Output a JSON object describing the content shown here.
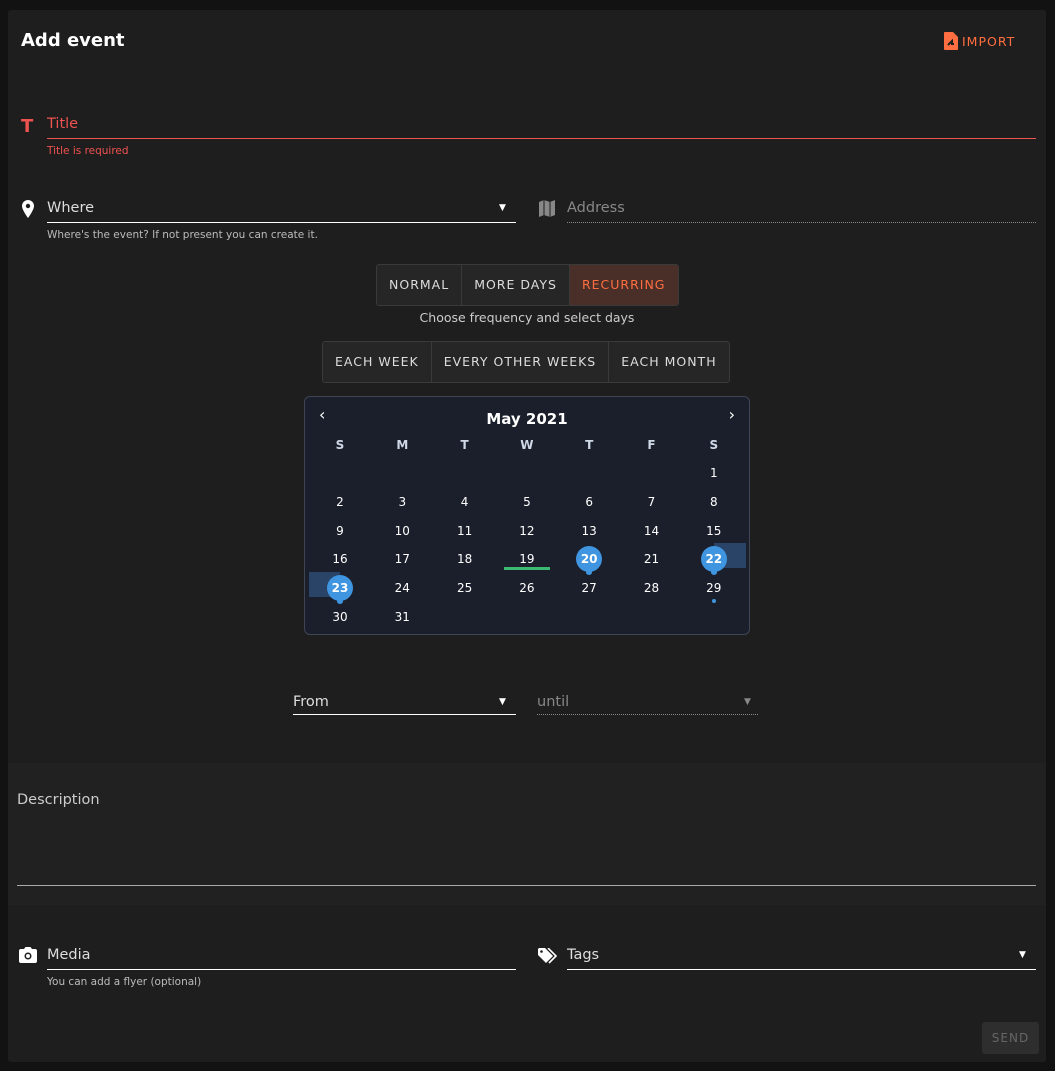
{
  "header": {
    "title": "Add event",
    "import_label": "IMPORT"
  },
  "colors": {
    "accent": "#ff6e40",
    "error": "#ef5350",
    "selected": "#3f95e0",
    "today": "#3cba72"
  },
  "title_field": {
    "label": "Title",
    "error": "Title is required"
  },
  "where_field": {
    "label": "Where",
    "hint": "Where's the event? If not present you can create it."
  },
  "address_field": {
    "placeholder": "Address"
  },
  "mode_buttons": [
    "NORMAL",
    "MORE DAYS",
    "RECURRING"
  ],
  "mode_selected": "RECURRING",
  "frequency_hint": "Choose frequency and select days",
  "frequency_buttons": [
    "EACH WEEK",
    "EVERY OTHER WEEKS",
    "EACH MONTH"
  ],
  "calendar": {
    "month": "May 2021",
    "weekdays": [
      "S",
      "M",
      "T",
      "W",
      "T",
      "F",
      "S"
    ],
    "weeks": [
      [
        "",
        "",
        "",
        "",
        "",
        "",
        "1"
      ],
      [
        "2",
        "3",
        "4",
        "5",
        "6",
        "7",
        "8"
      ],
      [
        "9",
        "10",
        "11",
        "12",
        "13",
        "14",
        "15"
      ],
      [
        "16",
        "17",
        "18",
        "19",
        "20",
        "21",
        "22"
      ],
      [
        "23",
        "24",
        "25",
        "26",
        "27",
        "28",
        "29"
      ],
      [
        "30",
        "31",
        "",
        "",
        "",
        "",
        ""
      ]
    ],
    "today": "19",
    "selected": [
      "20",
      "22",
      "23"
    ],
    "event_dot": [
      "29"
    ]
  },
  "from_field": {
    "label": "From"
  },
  "until_field": {
    "label": "until"
  },
  "description_field": {
    "label": "Description"
  },
  "media_field": {
    "label": "Media",
    "hint": "You can add a flyer (optional)"
  },
  "tags_field": {
    "label": "Tags"
  },
  "send_label": "SEND"
}
